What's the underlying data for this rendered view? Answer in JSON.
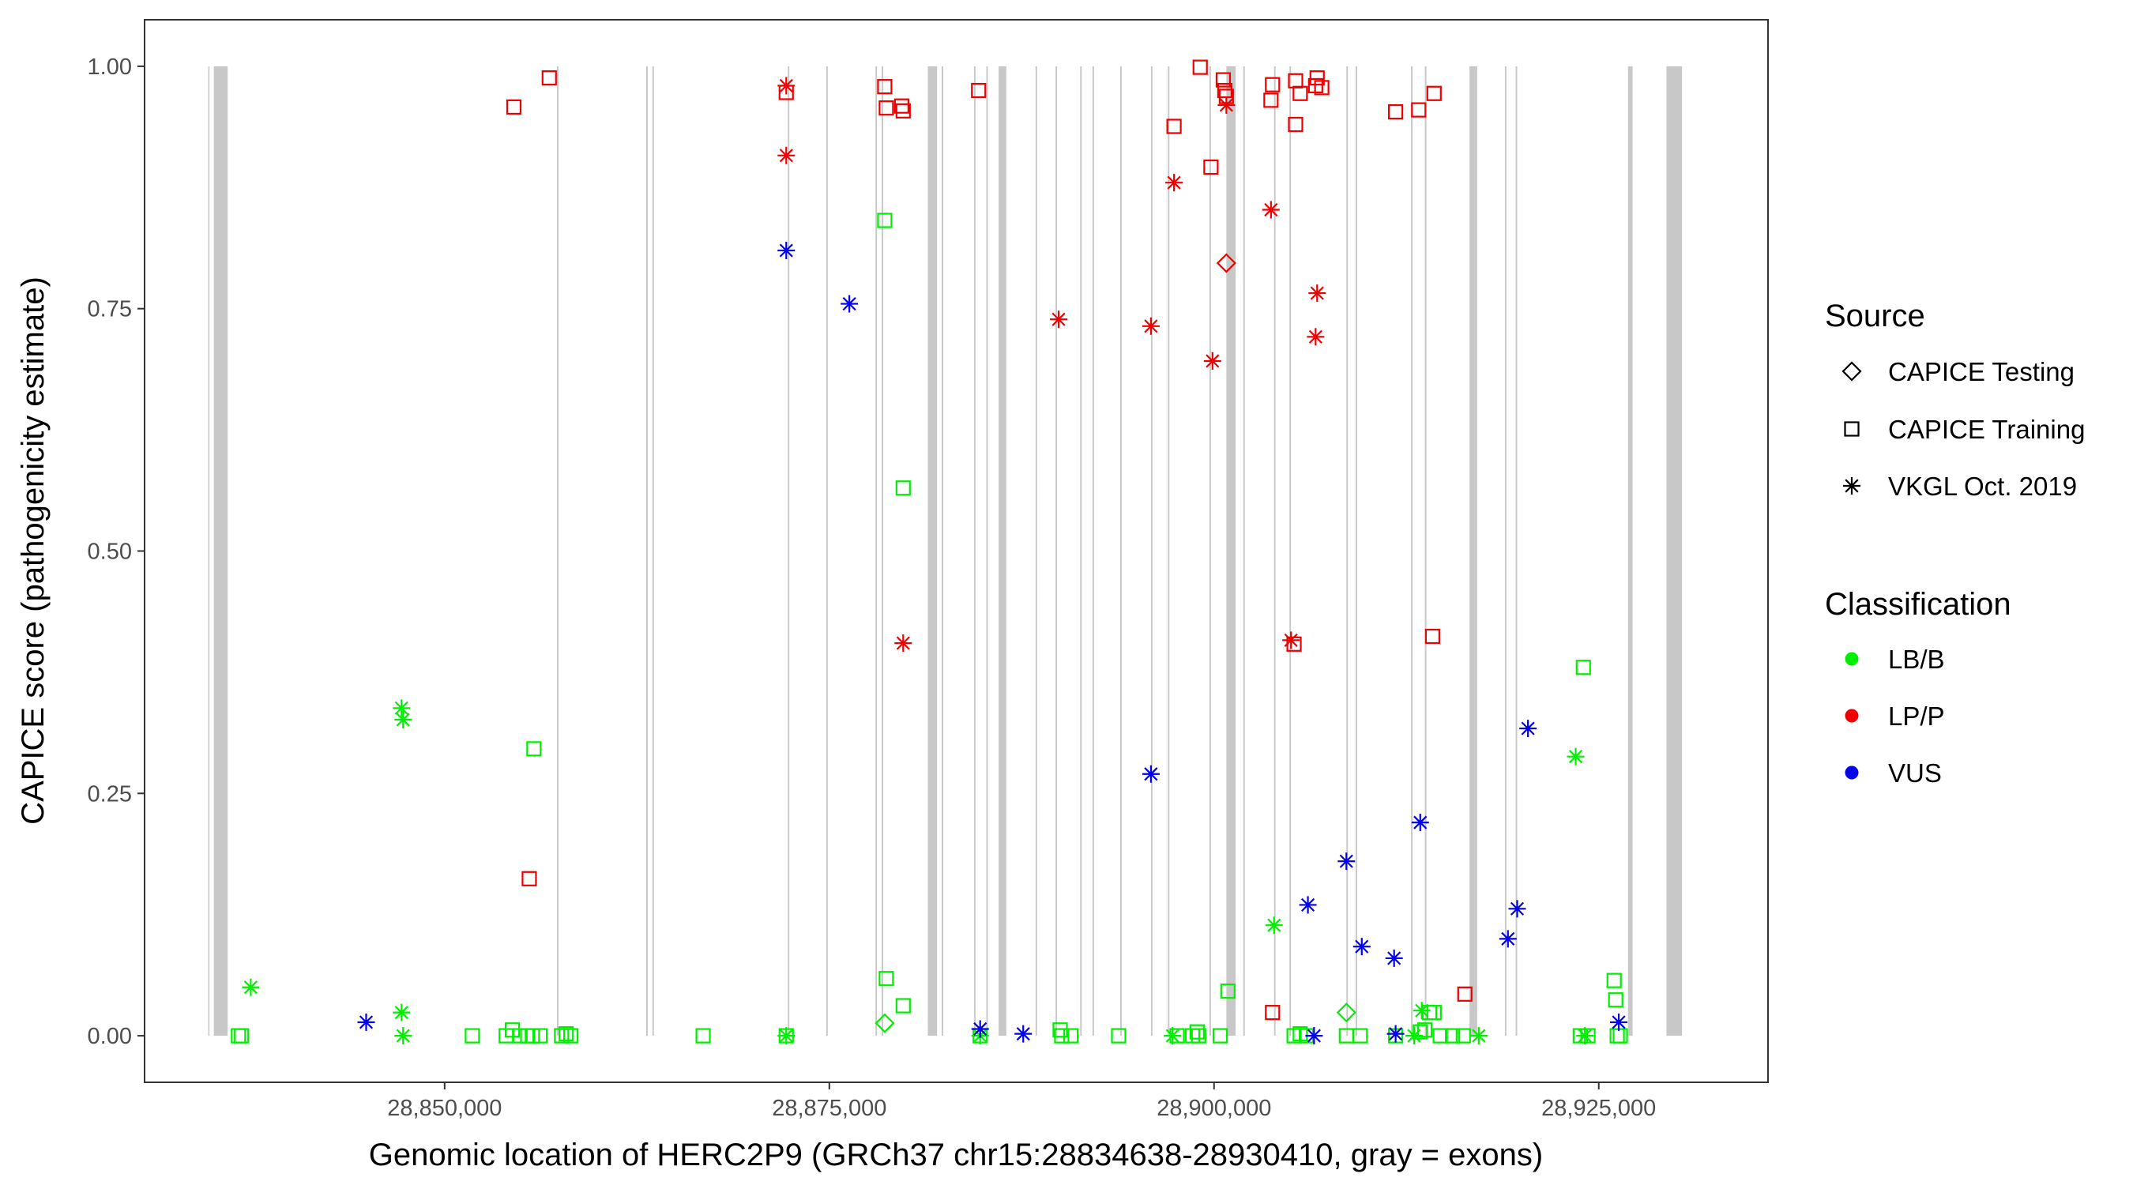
{
  "chart_data": {
    "type": "scatter",
    "title": "",
    "xlabel": "Genomic location of HERC2P9 (GRCh37 chr15:28834638-28930410, gray = exons)",
    "ylabel": "CAPICE score (pathogenicity estimate)",
    "xlim": [
      28830500,
      28936000
    ],
    "ylim": [
      -0.048,
      1.048
    ],
    "x_ticks": [
      28850000,
      28875000,
      28900000,
      28925000
    ],
    "x_tick_labels": [
      "28,850,000",
      "28,875,000",
      "28,900,000",
      "28,925,000"
    ],
    "y_ticks": [
      0,
      0.25,
      0.5,
      0.75,
      1.0
    ],
    "y_tick_labels": [
      "0.00",
      "0.25",
      "0.50",
      "0.75",
      "1.00"
    ],
    "grid": false,
    "legend_position": "right",
    "exons": [
      [
        28834638,
        28834700
      ],
      [
        28835000,
        28835900
      ],
      [
        28857300,
        28857400
      ],
      [
        28863100,
        28863200
      ],
      [
        28863500,
        28863600
      ],
      [
        28872300,
        28872400
      ],
      [
        28874800,
        28874900
      ],
      [
        28878000,
        28878100
      ],
      [
        28878400,
        28878500
      ],
      [
        28881400,
        28882000
      ],
      [
        28882300,
        28882400
      ],
      [
        28884400,
        28884500
      ],
      [
        28885200,
        28885300
      ],
      [
        28886000,
        28886500
      ],
      [
        28888400,
        28888500
      ],
      [
        28889700,
        28889800
      ],
      [
        28891300,
        28891400
      ],
      [
        28892100,
        28892200
      ],
      [
        28893900,
        28894000
      ],
      [
        28895900,
        28896000
      ],
      [
        28897000,
        28897100
      ],
      [
        28899700,
        28899800
      ],
      [
        28900800,
        28901400
      ],
      [
        28901900,
        28902000
      ],
      [
        28903900,
        28904000
      ],
      [
        28904900,
        28905000
      ],
      [
        28908600,
        28908700
      ],
      [
        28909200,
        28909300
      ],
      [
        28912800,
        28912900
      ],
      [
        28913700,
        28913800
      ],
      [
        28916600,
        28917100
      ],
      [
        28918900,
        28919000
      ],
      [
        28919600,
        28919700
      ],
      [
        28926900,
        28927200
      ],
      [
        28929400,
        28930410
      ]
    ],
    "colors": {
      "LB/B": "#00ee00",
      "LP/P": "#ee0000",
      "VUS": "#0000ee"
    },
    "legend": {
      "source_title": "Source",
      "source_items": [
        {
          "label": "CAPICE Testing",
          "shape": "diamond"
        },
        {
          "label": "CAPICE Training",
          "shape": "square"
        },
        {
          "label": "VKGL Oct. 2019",
          "shape": "asterisk"
        }
      ],
      "classification_title": "Classification",
      "classification_items": [
        {
          "label": "LB/B",
          "color": "#00ee00"
        },
        {
          "label": "LP/P",
          "color": "#ee0000"
        },
        {
          "label": "VUS",
          "color": "#0000ee"
        }
      ]
    },
    "series": [
      {
        "name": "LP/P",
        "shape": "square",
        "points": [
          [
            28854500,
            0.958
          ],
          [
            28856800,
            0.988
          ],
          [
            28855500,
            0.162
          ],
          [
            28872200,
            0.973
          ],
          [
            28878600,
            0.979
          ],
          [
            28878700,
            0.957
          ],
          [
            28879700,
            0.959
          ],
          [
            28879800,
            0.954
          ],
          [
            28884700,
            0.975
          ],
          [
            28899100,
            0.999
          ],
          [
            28900600,
            0.986
          ],
          [
            28900700,
            0.975
          ],
          [
            28900800,
            0.969
          ],
          [
            28903800,
            0.981
          ],
          [
            28903700,
            0.965
          ],
          [
            28905300,
            0.985
          ],
          [
            28905600,
            0.972
          ],
          [
            28906600,
            0.98
          ],
          [
            28906700,
            0.988
          ],
          [
            28907000,
            0.978
          ],
          [
            28911800,
            0.953
          ],
          [
            28913300,
            0.955
          ],
          [
            28914300,
            0.972
          ],
          [
            28897400,
            0.938
          ],
          [
            28899800,
            0.896
          ],
          [
            28905300,
            0.94
          ],
          [
            28903800,
            0.024
          ],
          [
            28905200,
            0.404
          ],
          [
            28914200,
            0.412
          ],
          [
            28916300,
            0.043
          ]
        ]
      },
      {
        "name": "LP/P",
        "shape": "asterisk",
        "points": [
          [
            28872200,
            0.98
          ],
          [
            28872200,
            0.908
          ],
          [
            28879800,
            0.405
          ],
          [
            28889900,
            0.739
          ],
          [
            28895900,
            0.732
          ],
          [
            28897400,
            0.88
          ],
          [
            28899900,
            0.696
          ],
          [
            28900800,
            0.96
          ],
          [
            28903700,
            0.852
          ],
          [
            28905000,
            0.408
          ],
          [
            28906700,
            0.766
          ],
          [
            28906600,
            0.721
          ]
        ]
      },
      {
        "name": "LP/P",
        "shape": "diamond",
        "points": [
          [
            28900800,
            0.797
          ]
        ]
      },
      {
        "name": "LB/B",
        "shape": "square",
        "points": [
          [
            28836600,
            0.0
          ],
          [
            28836800,
            0.0
          ],
          [
            28851800,
            0.0
          ],
          [
            28854000,
            0.0
          ],
          [
            28854400,
            0.006
          ],
          [
            28854900,
            0.0
          ],
          [
            28855400,
            0.0
          ],
          [
            28855700,
            0.0
          ],
          [
            28856200,
            0.0
          ],
          [
            28857600,
            0.0
          ],
          [
            28857900,
            0.002
          ],
          [
            28858200,
            0.0
          ],
          [
            28855800,
            0.296
          ],
          [
            28866800,
            0.0
          ],
          [
            28872200,
            0.0
          ],
          [
            28878600,
            0.841
          ],
          [
            28878700,
            0.059
          ],
          [
            28879800,
            0.565
          ],
          [
            28879800,
            0.031
          ],
          [
            28884800,
            0.0
          ],
          [
            28890000,
            0.006
          ],
          [
            28890100,
            0.0
          ],
          [
            28890700,
            0.0
          ],
          [
            28893800,
            0.0
          ],
          [
            28897600,
            0.0
          ],
          [
            28898600,
            0.0
          ],
          [
            28898900,
            0.004
          ],
          [
            28899000,
            0.0
          ],
          [
            28900400,
            0.0
          ],
          [
            28900900,
            0.046
          ],
          [
            28905200,
            0.0
          ],
          [
            28905600,
            0.002
          ],
          [
            28906000,
            0.0
          ],
          [
            28908600,
            0.0
          ],
          [
            28909500,
            0.0
          ],
          [
            28911800,
            0.0
          ],
          [
            28913400,
            0.004
          ],
          [
            28913700,
            0.006
          ],
          [
            28914000,
            0.024
          ],
          [
            28914300,
            0.024
          ],
          [
            28914700,
            0.0
          ],
          [
            28915500,
            0.0
          ],
          [
            28916200,
            0.0
          ],
          [
            28923800,
            0.0
          ],
          [
            28924000,
            0.38
          ],
          [
            28924300,
            0.0
          ],
          [
            28926000,
            0.057
          ],
          [
            28926100,
            0.037
          ],
          [
            28926200,
            0.0
          ],
          [
            28926400,
            0.0
          ]
        ]
      },
      {
        "name": "LB/B",
        "shape": "asterisk",
        "points": [
          [
            28837400,
            0.05
          ],
          [
            28847200,
            0.338
          ],
          [
            28847300,
            0.326
          ],
          [
            28847200,
            0.024
          ],
          [
            28847300,
            0.0
          ],
          [
            28872200,
            0.0
          ],
          [
            28884800,
            0.0
          ],
          [
            28897300,
            0.0
          ],
          [
            28903900,
            0.114
          ],
          [
            28913500,
            0.026
          ],
          [
            28913000,
            0.0
          ],
          [
            28917200,
            0.0
          ],
          [
            28923500,
            0.288
          ],
          [
            28924100,
            0.0
          ]
        ]
      },
      {
        "name": "LB/B",
        "shape": "diamond",
        "points": [
          [
            28878600,
            0.013
          ],
          [
            28908600,
            0.024
          ]
        ]
      },
      {
        "name": "VUS",
        "shape": "asterisk",
        "points": [
          [
            28844900,
            0.014
          ],
          [
            28872200,
            0.81
          ],
          [
            28876300,
            0.755
          ],
          [
            28884800,
            0.007
          ],
          [
            28887600,
            0.002
          ],
          [
            28895900,
            0.27
          ],
          [
            28906100,
            0.135
          ],
          [
            28906500,
            0.0
          ],
          [
            28908600,
            0.18
          ],
          [
            28909600,
            0.092
          ],
          [
            28911700,
            0.08
          ],
          [
            28911800,
            0.002
          ],
          [
            28913400,
            0.22
          ],
          [
            28919100,
            0.1
          ],
          [
            28919700,
            0.131
          ],
          [
            28920400,
            0.317
          ],
          [
            28926300,
            0.014
          ]
        ]
      }
    ]
  }
}
